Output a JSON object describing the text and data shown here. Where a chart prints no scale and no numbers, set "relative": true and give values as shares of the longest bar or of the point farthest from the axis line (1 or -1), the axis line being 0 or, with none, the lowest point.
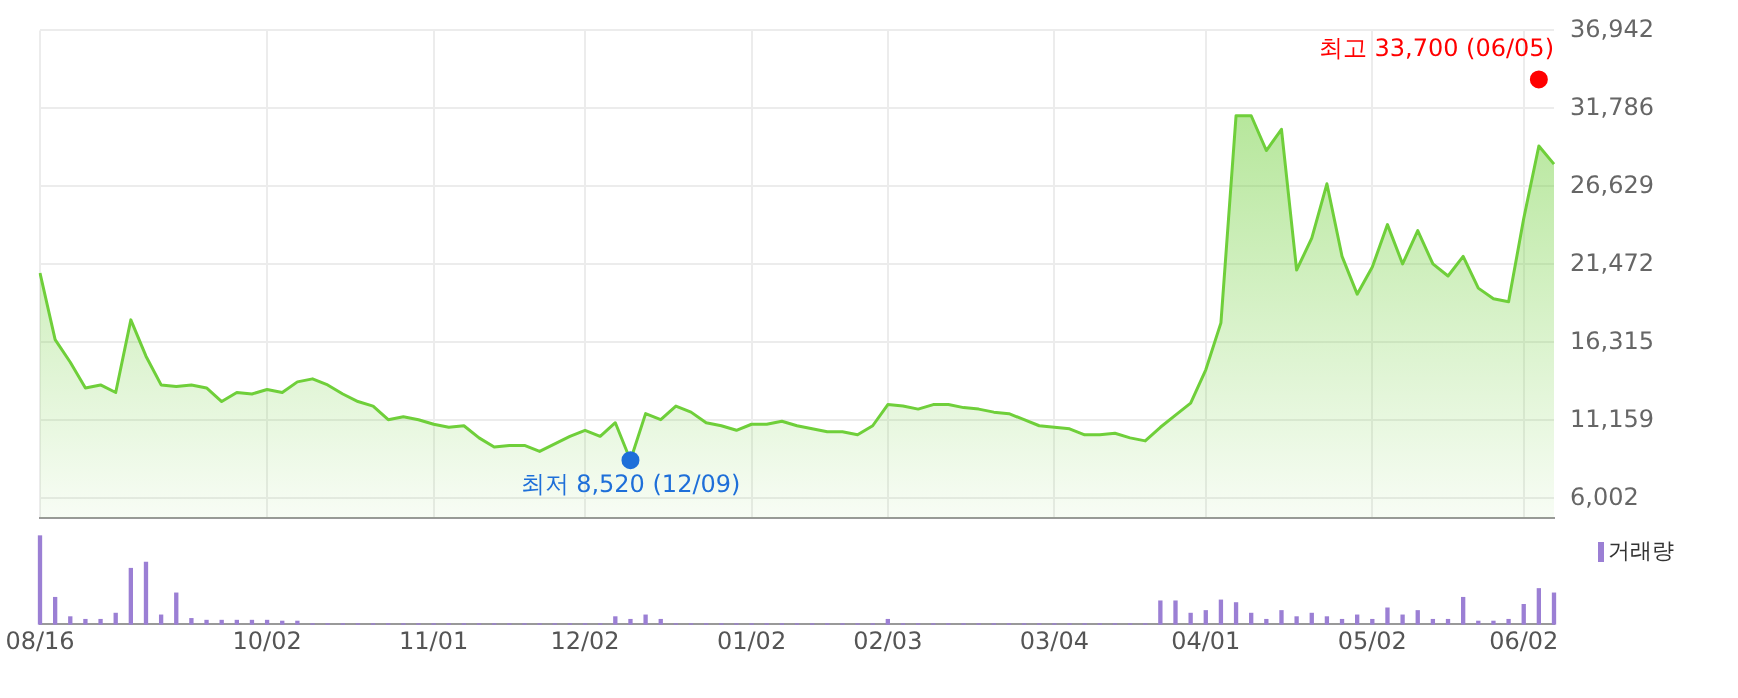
{
  "chart_data": [
    {
      "type": "area",
      "categories": [
        "08/16",
        null,
        null,
        null,
        null,
        null,
        null,
        null,
        null,
        null,
        null,
        null,
        null,
        null,
        null,
        "10/02",
        null,
        null,
        null,
        null,
        null,
        null,
        null,
        null,
        null,
        null,
        "11/01",
        null,
        null,
        null,
        null,
        null,
        null,
        null,
        null,
        null,
        "12/02",
        null,
        null,
        null,
        null,
        null,
        null,
        null,
        null,
        null,
        null,
        "01/02",
        null,
        null,
        null,
        null,
        null,
        null,
        null,
        null,
        "02/03",
        null,
        null,
        null,
        null,
        null,
        null,
        null,
        null,
        null,
        null,
        "03/04",
        null,
        null,
        null,
        null,
        null,
        null,
        null,
        null,
        null,
        "04/01",
        null,
        null,
        null,
        null,
        null,
        null,
        null,
        null,
        null,
        null,
        "05/02",
        null,
        null,
        null,
        null,
        null,
        null,
        null,
        null,
        null,
        "06/02",
        null,
        null
      ],
      "series": [
        {
          "color": "#6fcf3a",
          "values": [
            20900,
            16500,
            15000,
            13300,
            13500,
            13000,
            17800,
            15400,
            13500,
            13400,
            13500,
            13300,
            12400,
            13000,
            12900,
            13200,
            13000,
            13700,
            13900,
            13500,
            12900,
            12400,
            12100,
            11200,
            11400,
            11200,
            10900,
            10700,
            10800,
            10000,
            9400,
            9500,
            9500,
            9100,
            9600,
            10100,
            10500,
            10100,
            11000,
            8520,
            11600,
            11200,
            12100,
            11700,
            11000,
            10800,
            10500,
            10900,
            10900,
            11100,
            10800,
            10600,
            10400,
            10400,
            10200,
            10800,
            12200,
            12100,
            11900,
            12200,
            12200,
            12000,
            11900,
            11700,
            11600,
            11200,
            10800,
            10700,
            10600,
            10200,
            10200,
            10300,
            10000,
            9800,
            10700,
            11500,
            12300,
            14500,
            17600,
            31300,
            31300,
            29000,
            30400,
            21100,
            23200,
            26800,
            22000,
            19500,
            21300,
            24100,
            21500,
            23700,
            21500,
            20700,
            22000,
            19900,
            19200,
            19000,
            24500,
            29300,
            28100
          ]
        },
        {
          "type": "scatter",
          "marker": "circle",
          "color": "#ff0000",
          "values": [
            null,
            null,
            null,
            null,
            null,
            null,
            null,
            null,
            null,
            null,
            null,
            null,
            null,
            null,
            null,
            null,
            null,
            null,
            null,
            null,
            null,
            null,
            null,
            null,
            null,
            null,
            null,
            null,
            null,
            null,
            null,
            null,
            null,
            null,
            null,
            null,
            null,
            null,
            null,
            null,
            null,
            null,
            null,
            null,
            null,
            null,
            null,
            null,
            null,
            null,
            null,
            null,
            null,
            null,
            null,
            null,
            null,
            null,
            null,
            null,
            null,
            null,
            null,
            null,
            null,
            null,
            null,
            null,
            null,
            null,
            null,
            null,
            null,
            null,
            null,
            null,
            null,
            null,
            null,
            null,
            null,
            null,
            null,
            null,
            null,
            null,
            null,
            null,
            null,
            null,
            null,
            null,
            null,
            null,
            null,
            null,
            null,
            null,
            null,
            33700,
            null
          ]
        },
        {
          "type": "scatter",
          "marker": "circle",
          "color": "#1e6fd9",
          "values": [
            null,
            null,
            null,
            null,
            null,
            null,
            null,
            null,
            null,
            null,
            null,
            null,
            null,
            null,
            null,
            null,
            null,
            null,
            null,
            null,
            null,
            null,
            null,
            null,
            null,
            null,
            null,
            null,
            null,
            null,
            null,
            null,
            null,
            null,
            null,
            null,
            null,
            null,
            null,
            8520,
            null,
            null,
            null,
            null,
            null,
            null,
            null,
            null,
            null,
            null,
            null,
            null,
            null,
            null,
            null,
            null,
            null,
            null,
            null,
            null,
            null,
            null,
            null,
            null,
            null,
            null,
            null,
            null,
            null,
            null,
            null,
            null,
            null,
            null,
            null,
            null,
            null,
            null,
            null,
            null,
            null,
            null,
            null,
            null,
            null,
            null,
            null,
            null,
            null,
            null,
            null,
            null,
            null,
            null,
            null,
            null,
            null,
            null,
            null,
            null,
            null
          ]
        }
      ],
      "annotations": [
        "최고 33,700 (06/05)",
        "최저 8,520 (12/09)"
      ],
      "ylim": [
        4700,
        36942
      ],
      "yticks": [
        {
          "value": 6002,
          "label": "6,002"
        },
        {
          "value": 11159,
          "label": "11,159"
        },
        {
          "value": 16315,
          "label": "16,315"
        },
        {
          "value": 21472,
          "label": "21,472"
        },
        {
          "value": 26629,
          "label": "26,629"
        },
        {
          "value": 31786,
          "label": "31,786"
        },
        {
          "value": 36942,
          "label": "36,942"
        }
      ],
      "grid": true
    },
    {
      "type": "bar",
      "relative": true,
      "categories": [
        null,
        null,
        null,
        null,
        null,
        null,
        null,
        null,
        null,
        null,
        null,
        null,
        null,
        null,
        null,
        null,
        null,
        null,
        null,
        null,
        null,
        null,
        null,
        null,
        null,
        null,
        null,
        null,
        null,
        null,
        null,
        null,
        null,
        null,
        null,
        null,
        null,
        null,
        null,
        null,
        null,
        null,
        null,
        null,
        null,
        null,
        null,
        null,
        null,
        null,
        null,
        null,
        null,
        null,
        null,
        null,
        null,
        null,
        null,
        null,
        null,
        null,
        null,
        null,
        null,
        null,
        null,
        null,
        null,
        null,
        null,
        null,
        null,
        null,
        null,
        null,
        null,
        null,
        null,
        null,
        null,
        null,
        null,
        null,
        null,
        null,
        null,
        null,
        null,
        null,
        null,
        null,
        null,
        null,
        null,
        null,
        null,
        null,
        null,
        null,
        null
      ],
      "series": [
        {
          "name": "거래량",
          "color": "#9b7fd4",
          "values": [
            1,
            0.3,
            0.08,
            0.05,
            0.05,
            0.12,
            0.63,
            0.7,
            0.1,
            0.35,
            0.06,
            0.04,
            0.04,
            0.04,
            0.04,
            0.04,
            0.03,
            0.03,
            0,
            0,
            0,
            0,
            0,
            0,
            0,
            0,
            0,
            0,
            0,
            0,
            0,
            0,
            0,
            0,
            0,
            0,
            0,
            0,
            0.08,
            0.05,
            0.1,
            0.05,
            0,
            0,
            0,
            0,
            0,
            0,
            0,
            0,
            0,
            0,
            0,
            0,
            0,
            0,
            0.05,
            0,
            0,
            0,
            0,
            0,
            0,
            0,
            0,
            0,
            0,
            0,
            0,
            0,
            0,
            0,
            0,
            0,
            0.26,
            0.26,
            0.12,
            0.15,
            0.27,
            0.24,
            0.12,
            0.05,
            0.15,
            0.08,
            0.12,
            0.08,
            0.05,
            0.1,
            0.05,
            0.18,
            0.1,
            0.15,
            0.05,
            0.05,
            0.3,
            0.03,
            0.03,
            0.05,
            0.22,
            0.4,
            0.35
          ]
        }
      ],
      "legend": "top right",
      "tick_labels": false
    }
  ]
}
